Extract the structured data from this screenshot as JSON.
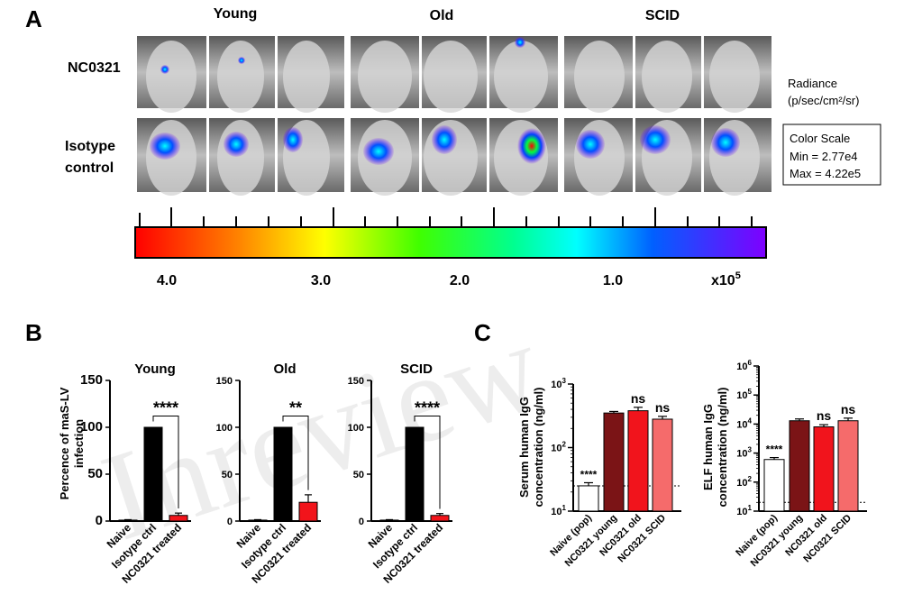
{
  "panel_a": {
    "letter": "A",
    "groups": [
      "Young",
      "Old",
      "SCID"
    ],
    "rows": [
      {
        "label_lines": [
          "NC0321"
        ]
      },
      {
        "label_lines": [
          "Isotype",
          "control"
        ]
      }
    ],
    "radiance_lines": [
      "Radiance",
      "(p/sec/cm²/sr)"
    ],
    "color_scale": {
      "title": "Color Scale",
      "min": "Min = 2.77e4",
      "max": "Max = 4.22e5"
    },
    "colorbar_ticks": [
      "4.0",
      "3.0",
      "2.0",
      "1.0"
    ],
    "colorbar_unit": "x10",
    "colorbar_unit_exp": "5"
  },
  "panel_b": {
    "letter": "B",
    "ylabel_lines": [
      "Percence of maS-LV",
      "infection"
    ],
    "categories": [
      "Naive",
      "Isotype ctrl",
      "NC0321 treated"
    ],
    "yticks": [
      "0",
      "50",
      "100",
      "150"
    ]
  },
  "panel_c": {
    "letter": "C",
    "categories": [
      "Naive (pop)",
      "NC0321 young",
      "NC0321 old",
      "NC0321 SCID"
    ]
  },
  "watermark": "Inreview",
  "colors": {
    "black_bar": "#000000",
    "red_bar": "#f2141b",
    "dark_red": "#7b1416",
    "red": "#f1141c",
    "light_red": "#f56b6b",
    "white_bar": "#ffffff"
  },
  "chart_data": [
    {
      "type": "bar",
      "title": "Young",
      "ylabel": "Percence of maS-LV infection",
      "ylim": [
        0,
        150
      ],
      "categories": [
        "Naive",
        "Isotype ctrl",
        "NC0321 treated"
      ],
      "values": [
        1,
        100,
        6
      ],
      "errors": [
        0.5,
        0,
        2.5
      ],
      "significance": "****"
    },
    {
      "type": "bar",
      "title": "Old",
      "ylim": [
        0,
        150
      ],
      "categories": [
        "Naive",
        "Isotype ctrl",
        "NC0321 treated"
      ],
      "values": [
        1,
        100,
        20
      ],
      "errors": [
        0.5,
        0,
        8
      ],
      "significance": "**"
    },
    {
      "type": "bar",
      "title": "SCID",
      "ylim": [
        0,
        150
      ],
      "categories": [
        "Naive",
        "Isotype ctrl",
        "NC0321 treated"
      ],
      "values": [
        1,
        100,
        6
      ],
      "errors": [
        0.5,
        0,
        2
      ],
      "significance": "****"
    },
    {
      "type": "bar",
      "scale": "log",
      "ylim": [
        10,
        1000
      ],
      "ylabel": "Serum human IgG concentration (ng/ml)",
      "categories": [
        "Naive (pop)",
        "NC0321 young",
        "NC0321 old",
        "NC0321 SCID"
      ],
      "values": [
        25,
        350,
        380,
        280
      ],
      "errors": [
        3,
        20,
        50,
        30
      ],
      "annotations": [
        "****",
        "",
        "ns",
        "ns"
      ],
      "reference_line": 25
    },
    {
      "type": "bar",
      "scale": "log",
      "ylim": [
        10,
        1000000
      ],
      "ylabel": "ELF human IgG concentration (ng/ml)",
      "categories": [
        "Naive (pop)",
        "NC0321 young",
        "NC0321 old",
        "NC0321 SCID"
      ],
      "values": [
        600,
        13000,
        8000,
        13000
      ],
      "errors": [
        100,
        2000,
        1500,
        3000
      ],
      "annotations": [
        "****",
        "",
        "ns",
        "ns"
      ],
      "reference_line": 20
    }
  ]
}
